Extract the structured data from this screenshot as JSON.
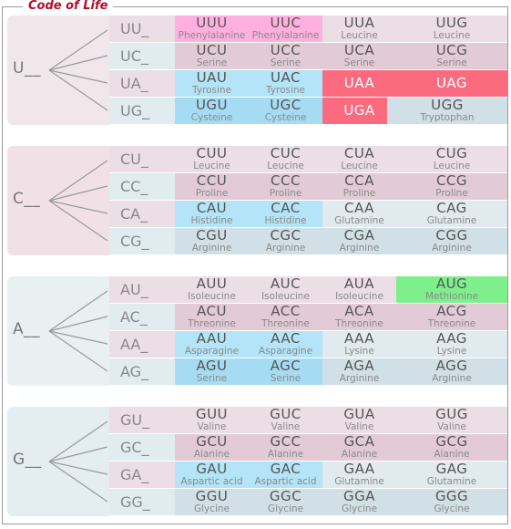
{
  "title": "Code of Life",
  "colors": {
    "title": "#b0102a",
    "frame": "#9a9a9a",
    "first_U": "#f1e6ea",
    "first_C": "#f1e1e6",
    "first_A": "#e8f0f2",
    "first_G": "#e4edf1",
    "rowlabel_pink": "#ecdee5",
    "rowlabel_blue": "#e1ecf0",
    "cell_pink": "#ecdee5",
    "cell_mauve": "#e2cbd6",
    "cell_light": "#e1eaee",
    "cell_grayblue": "#d1e0e6",
    "cell_cyan": "#b4e4f7",
    "cell_cyan2": "#a6dcf3",
    "cell_magenta": "#ffb0de",
    "cell_stop": "#fb6b80",
    "cell_start": "#7ef08b"
  },
  "groups": [
    {
      "first": "U__",
      "rows": [
        {
          "label": "UU_",
          "cells": [
            {
              "codon": "UUU",
              "amino": "Phenylalanine",
              "kind": "magenta"
            },
            {
              "codon": "UUC",
              "amino": "Phenylalanine",
              "kind": "magenta"
            },
            {
              "codon": "UUA",
              "amino": "Leucine",
              "kind": "pink"
            },
            {
              "codon": "UUG",
              "amino": "Leucine",
              "kind": "pink"
            }
          ]
        },
        {
          "label": "UC_",
          "cells": [
            {
              "codon": "UCU",
              "amino": "Serine",
              "kind": "mauve"
            },
            {
              "codon": "UCC",
              "amino": "Serine",
              "kind": "mauve"
            },
            {
              "codon": "UCA",
              "amino": "Serine",
              "kind": "mauve"
            },
            {
              "codon": "UCG",
              "amino": "Serine",
              "kind": "mauve"
            }
          ]
        },
        {
          "label": "UA_",
          "cells": [
            {
              "codon": "UAU",
              "amino": "Tyrosine",
              "kind": "cyan"
            },
            {
              "codon": "UAC",
              "amino": "Tyrosine",
              "kind": "cyan"
            },
            {
              "codon": "UAA",
              "amino": "",
              "kind": "stop"
            },
            {
              "codon": "UAG",
              "amino": "",
              "kind": "stop"
            }
          ]
        },
        {
          "label": "UG_",
          "cells": [
            {
              "codon": "UGU",
              "amino": "Cysteine",
              "kind": "cyan2"
            },
            {
              "codon": "UGC",
              "amino": "Cysteine",
              "kind": "cyan2"
            },
            {
              "codon": "UGA",
              "amino": "",
              "kind": "stop"
            },
            {
              "codon": "UGG",
              "amino": "Tryptophan",
              "kind": "grayblue"
            }
          ]
        }
      ]
    },
    {
      "first": "C__",
      "rows": [
        {
          "label": "CU_",
          "cells": [
            {
              "codon": "CUU",
              "amino": "Leucine",
              "kind": "pink"
            },
            {
              "codon": "CUC",
              "amino": "Leucine",
              "kind": "pink"
            },
            {
              "codon": "CUA",
              "amino": "Leucine",
              "kind": "pink"
            },
            {
              "codon": "CUG",
              "amino": "Leucine",
              "kind": "pink"
            }
          ]
        },
        {
          "label": "CC_",
          "cells": [
            {
              "codon": "CCU",
              "amino": "Proline",
              "kind": "mauve"
            },
            {
              "codon": "CCC",
              "amino": "Proline",
              "kind": "mauve"
            },
            {
              "codon": "CCA",
              "amino": "Proline",
              "kind": "mauve"
            },
            {
              "codon": "CCG",
              "amino": "Proline",
              "kind": "mauve"
            }
          ]
        },
        {
          "label": "CA_",
          "cells": [
            {
              "codon": "CAU",
              "amino": "Histidine",
              "kind": "cyan"
            },
            {
              "codon": "CAC",
              "amino": "Histidine",
              "kind": "cyan"
            },
            {
              "codon": "CAA",
              "amino": "Glutamine",
              "kind": "light"
            },
            {
              "codon": "CAG",
              "amino": "Glutamine",
              "kind": "light"
            }
          ]
        },
        {
          "label": "CG_",
          "cells": [
            {
              "codon": "CGU",
              "amino": "Arginine",
              "kind": "grayblue"
            },
            {
              "codon": "CGC",
              "amino": "Arginine",
              "kind": "grayblue"
            },
            {
              "codon": "CGA",
              "amino": "Arginine",
              "kind": "grayblue"
            },
            {
              "codon": "CGG",
              "amino": "Arginine",
              "kind": "grayblue"
            }
          ]
        }
      ]
    },
    {
      "first": "A__",
      "rows": [
        {
          "label": "AU_",
          "cells": [
            {
              "codon": "AUU",
              "amino": "Isoleucine",
              "kind": "pink"
            },
            {
              "codon": "AUC",
              "amino": "Isoleucine",
              "kind": "pink"
            },
            {
              "codon": "AUA",
              "amino": "Isoleucine",
              "kind": "pink"
            },
            {
              "codon": "AUG",
              "amino": "Methionine",
              "kind": "start"
            }
          ]
        },
        {
          "label": "AC_",
          "cells": [
            {
              "codon": "ACU",
              "amino": "Threonine",
              "kind": "mauve"
            },
            {
              "codon": "ACC",
              "amino": "Threonine",
              "kind": "mauve"
            },
            {
              "codon": "ACA",
              "amino": "Threonine",
              "kind": "mauve"
            },
            {
              "codon": "ACG",
              "amino": "Threonine",
              "kind": "mauve"
            }
          ]
        },
        {
          "label": "AA_",
          "cells": [
            {
              "codon": "AAU",
              "amino": "Asparagine",
              "kind": "cyan"
            },
            {
              "codon": "AAC",
              "amino": "Asparagine",
              "kind": "cyan"
            },
            {
              "codon": "AAA",
              "amino": "Lysine",
              "kind": "light"
            },
            {
              "codon": "AAG",
              "amino": "Lysine",
              "kind": "light"
            }
          ]
        },
        {
          "label": "AG_",
          "cells": [
            {
              "codon": "AGU",
              "amino": "Serine",
              "kind": "cyan2"
            },
            {
              "codon": "AGC",
              "amino": "Serine",
              "kind": "cyan2"
            },
            {
              "codon": "AGA",
              "amino": "Arginine",
              "kind": "grayblue"
            },
            {
              "codon": "AGG",
              "amino": "Arginine",
              "kind": "grayblue"
            }
          ]
        }
      ]
    },
    {
      "first": "G__",
      "rows": [
        {
          "label": "GU_",
          "cells": [
            {
              "codon": "GUU",
              "amino": "Valine",
              "kind": "pink"
            },
            {
              "codon": "GUC",
              "amino": "Valine",
              "kind": "pink"
            },
            {
              "codon": "GUA",
              "amino": "Valine",
              "kind": "pink"
            },
            {
              "codon": "GUG",
              "amino": "Valine",
              "kind": "pink"
            }
          ]
        },
        {
          "label": "GC_",
          "cells": [
            {
              "codon": "GCU",
              "amino": "Alanine",
              "kind": "mauve"
            },
            {
              "codon": "GCC",
              "amino": "Alanine",
              "kind": "mauve"
            },
            {
              "codon": "GCA",
              "amino": "Alanine",
              "kind": "mauve"
            },
            {
              "codon": "GCG",
              "amino": "Alanine",
              "kind": "mauve"
            }
          ]
        },
        {
          "label": "GA_",
          "cells": [
            {
              "codon": "GAU",
              "amino": "Aspartic acid",
              "kind": "cyan"
            },
            {
              "codon": "GAC",
              "amino": "Aspartic acid",
              "kind": "cyan"
            },
            {
              "codon": "GAA",
              "amino": "Glutamine",
              "kind": "light"
            },
            {
              "codon": "GAG",
              "amino": "Glutamine",
              "kind": "light"
            }
          ]
        },
        {
          "label": "GG_",
          "cells": [
            {
              "codon": "GGU",
              "amino": "Glycine",
              "kind": "grayblue"
            },
            {
              "codon": "GGC",
              "amino": "Glycine",
              "kind": "grayblue"
            },
            {
              "codon": "GGA",
              "amino": "Glycine",
              "kind": "grayblue"
            },
            {
              "codon": "GGG",
              "amino": "Glycine",
              "kind": "grayblue"
            }
          ]
        }
      ]
    }
  ]
}
